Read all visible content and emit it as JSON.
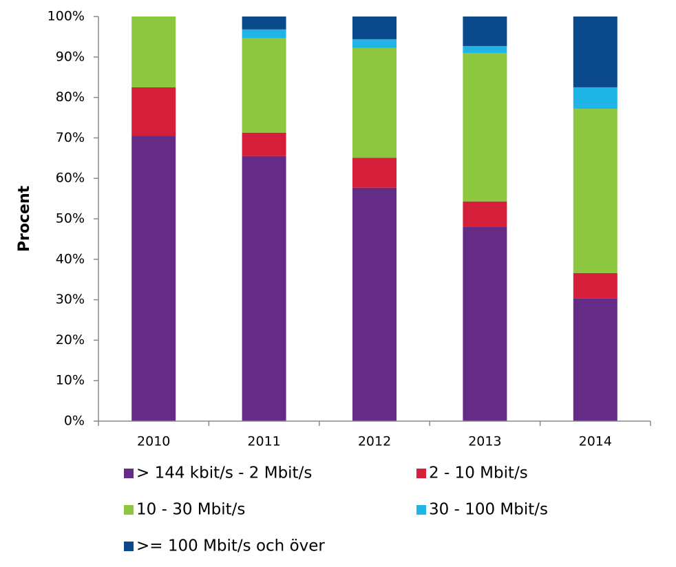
{
  "chart_data": {
    "type": "stacked-bar",
    "y_label": "Procent",
    "categories": [
      "2010",
      "2011",
      "2012",
      "2013",
      "2014"
    ],
    "series": [
      {
        "name": "> 144 kbit/s - 2 Mbit/s",
        "color": "#642c86",
        "values": [
          70.5,
          65.5,
          57.7,
          48.1,
          30.4
        ]
      },
      {
        "name": "2 - 10 Mbit/s",
        "color": "#d51f3a",
        "values": [
          12,
          5.8,
          7.4,
          6.2,
          6.2
        ]
      },
      {
        "name": "10 - 30 Mbit/s",
        "color": "#8dc63f",
        "values": [
          17.5,
          23.3,
          27.1,
          36.7,
          40.6
        ]
      },
      {
        "name": "30 - 100 Mbit/s",
        "color": "#1fb5e6",
        "values": [
          0,
          2.2,
          2.2,
          1.7,
          5.3
        ]
      },
      {
        "name": ">= 100 Mbit/s och över",
        "color": "#0a4a8c",
        "values": [
          0,
          3.2,
          5.6,
          7.3,
          17.5
        ]
      }
    ],
    "ylim": [
      0,
      100
    ],
    "yticks": [
      {
        "value": 0,
        "label": "0%"
      },
      {
        "value": 10,
        "label": "10%"
      },
      {
        "value": 20,
        "label": "20%"
      },
      {
        "value": 30,
        "label": "30%"
      },
      {
        "value": 40,
        "label": "40%"
      },
      {
        "value": 50,
        "label": "50%"
      },
      {
        "value": 60,
        "label": "60%"
      },
      {
        "value": 70,
        "label": "70%"
      },
      {
        "value": 80,
        "label": "80%"
      },
      {
        "value": 90,
        "label": "90%"
      },
      {
        "value": 100,
        "label": "100%"
      }
    ],
    "grid": false
  }
}
